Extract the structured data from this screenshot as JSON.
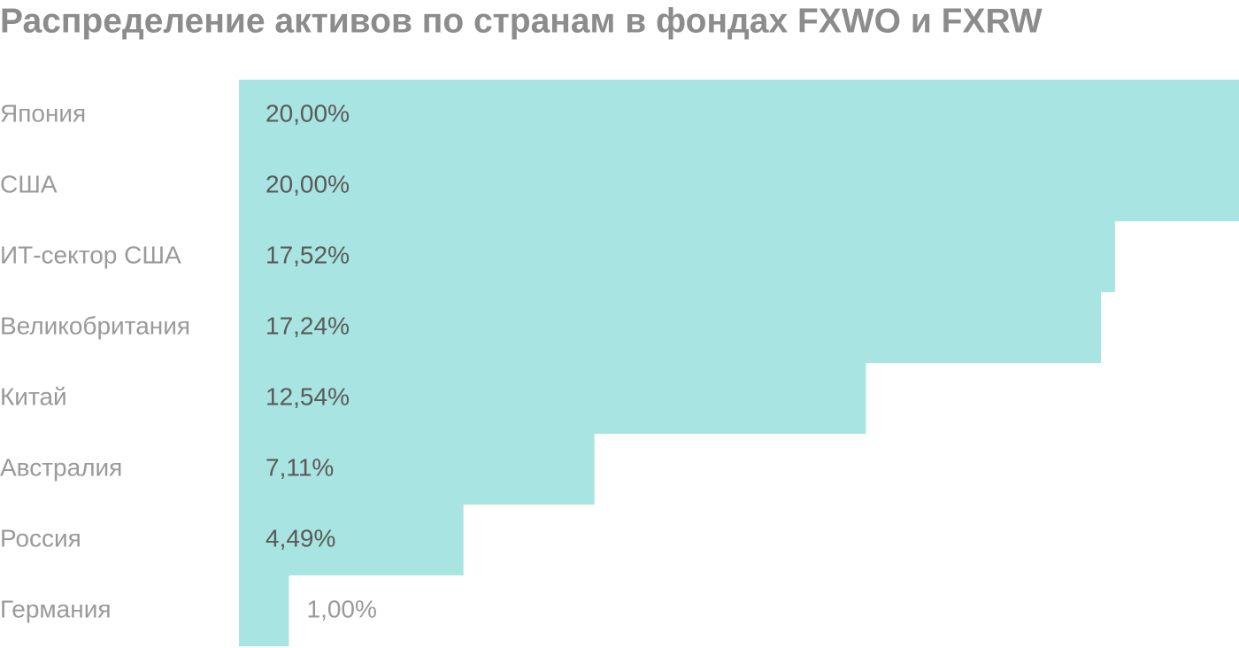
{
  "chart_data": {
    "type": "bar",
    "orientation": "horizontal",
    "title": "Распределение активов по странам в фондах FXWO и FXRW",
    "categories": [
      "Япония",
      "США",
      "ИТ-сектор США",
      "Великобритания",
      "Китай",
      "Австралия",
      "Россия",
      "Германия"
    ],
    "values": [
      20.0,
      20.0,
      17.52,
      17.24,
      12.54,
      7.11,
      4.49,
      1.0
    ],
    "value_labels": [
      "20,00%",
      "20,00%",
      "17,52%",
      "17,24%",
      "12,54%",
      "7,11%",
      "4,49%",
      "1,00%"
    ],
    "color": "#a8e4e1",
    "xlim": [
      0,
      20
    ]
  }
}
